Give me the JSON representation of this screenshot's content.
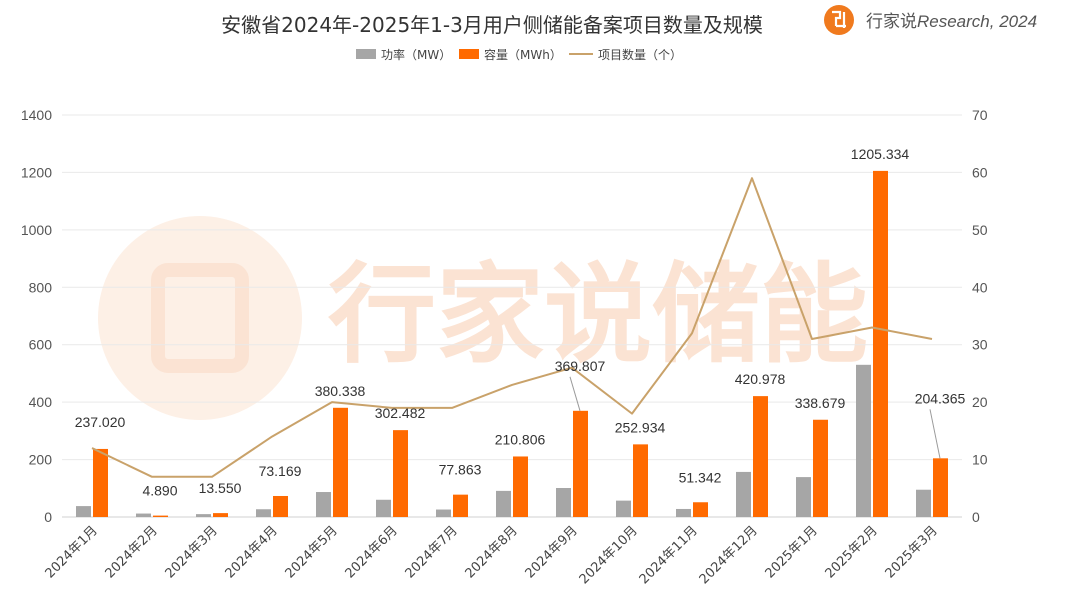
{
  "brand": {
    "text": "行家说",
    "italic": "Research, 2024",
    "color": "#f07a1e"
  },
  "watermark": "行家说储能",
  "chart_data": {
    "type": "bar",
    "title": "安徽省2024年-2025年1-3月用户侧储能备案项目数量及规模",
    "categories": [
      "2024年1月",
      "2024年2月",
      "2024年3月",
      "2024年4月",
      "2024年5月",
      "2024年6月",
      "2024年7月",
      "2024年8月",
      "2024年9月",
      "2024年10月",
      "2024年11月",
      "2024年12月",
      "2025年1月",
      "2025年2月",
      "2025年3月"
    ],
    "series": [
      {
        "name": "功率（MW）",
        "type": "bar",
        "axis": "left",
        "color": "#a6a6a6",
        "values": [
          38,
          12,
          10,
          27,
          87,
          60,
          26,
          91,
          101,
          57,
          28,
          157,
          139,
          530,
          95
        ]
      },
      {
        "name": "容量（MWh）",
        "type": "bar",
        "axis": "left",
        "color": "#ff6a00",
        "values": [
          237.02,
          4.89,
          13.55,
          73.169,
          380.338,
          302.482,
          77.863,
          210.806,
          369.807,
          252.934,
          51.342,
          420.978,
          338.679,
          1205.334,
          204.365
        ]
      },
      {
        "name": "项目数量（个）",
        "type": "line",
        "axis": "right",
        "color": "#c9a26a",
        "values": [
          12,
          7,
          7,
          14,
          20,
          19,
          19,
          23,
          26,
          18,
          32,
          59,
          31,
          33,
          31
        ]
      }
    ],
    "data_labels": [
      "237.020",
      "4.890",
      "13.550",
      "73.169",
      "380.338",
      "302.482",
      "77.863",
      "210.806",
      "369.807",
      "252.934",
      "51.342",
      "420.978",
      "338.679",
      "1205.334",
      "204.365"
    ],
    "ylim_left": [
      0,
      1400
    ],
    "ylim_right": [
      0,
      70
    ],
    "yticks_left": [
      0,
      200,
      400,
      600,
      800,
      1000,
      1200,
      1400
    ],
    "yticks_right": [
      0,
      10,
      20,
      30,
      40,
      50,
      60,
      70
    ],
    "grid": true,
    "legend_position": "top-center"
  }
}
